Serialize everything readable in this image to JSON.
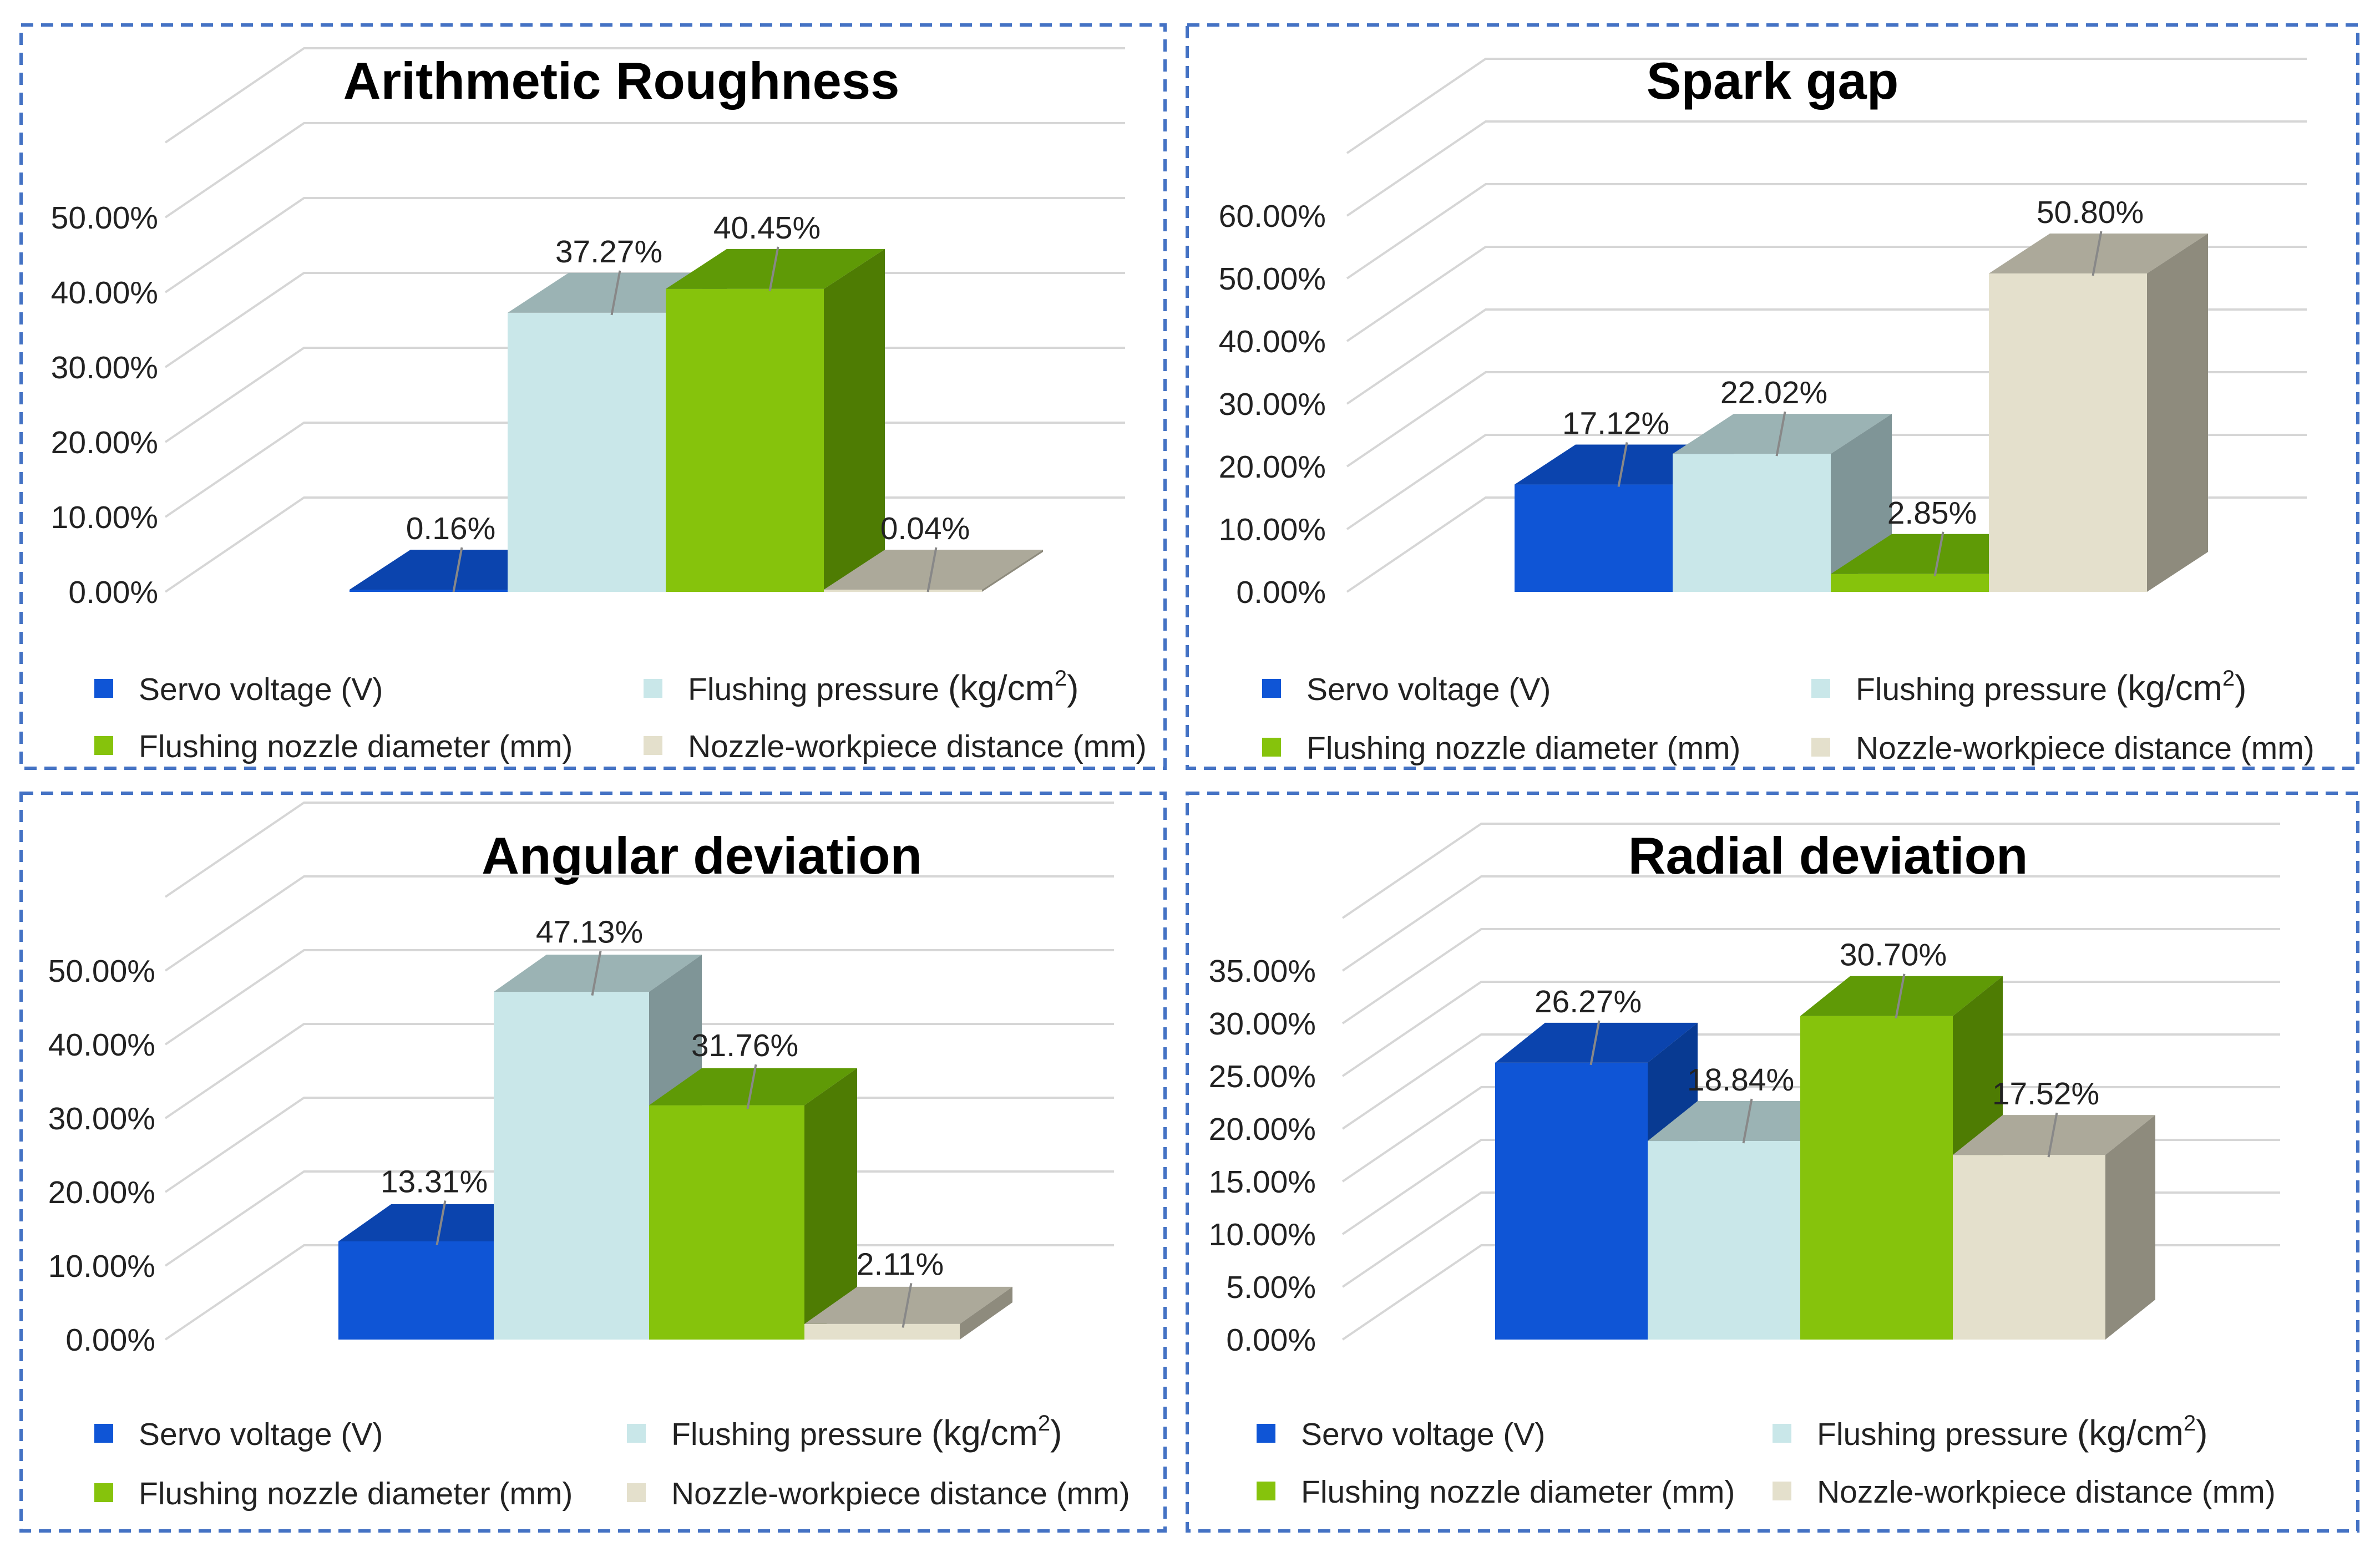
{
  "colors": {
    "panel_border": "#4472C4",
    "series": [
      {
        "front": "#0F55D6",
        "top": "#0B44AE",
        "side": "#083A92"
      },
      {
        "front": "#C9E7E9",
        "top": "#9BB3B4",
        "side": "#7F9597"
      },
      {
        "front": "#86C30C",
        "top": "#5F9A06",
        "side": "#4E7C03"
      },
      {
        "front": "#E4E0CC",
        "top": "#ACA99A",
        "side": "#8E8B7D"
      }
    ]
  },
  "legend": {
    "servo": "Servo voltage (V)",
    "flushing_pressure": "Flushing pressure",
    "flushing_pressure_unit": "(kg/cm",
    "flushing_pressure_sup": "2",
    "flushing_pressure_close": ")",
    "nozzle_diameter": "Flushing nozzle diameter (mm)",
    "nozzle_distance": "Nozzle-workpiece distance (mm)"
  },
  "chart_data": [
    {
      "type": "bar",
      "title": "Arithmetic Roughness",
      "categories": [
        "Servo voltage (V)",
        "Flushing pressure (kg/cm2)",
        "Flushing nozzle diameter (mm)",
        "Nozzle-workpiece distance (mm)"
      ],
      "values": [
        0.16,
        37.27,
        40.45,
        0.04
      ],
      "value_labels": [
        "0.16%",
        "37.27%",
        "40.45%",
        "0.04%"
      ],
      "yticks": [
        "0.00%",
        "10.00%",
        "20.00%",
        "30.00%",
        "40.00%",
        "50.00%"
      ],
      "ylim": [
        0,
        60
      ],
      "xlabel": "",
      "ylabel": ""
    },
    {
      "type": "bar",
      "title": "Spark gap",
      "categories": [
        "Servo voltage (V)",
        "Flushing pressure (kg/cm2)",
        "Flushing nozzle diameter (mm)",
        "Nozzle-workpiece distance (mm)"
      ],
      "values": [
        17.12,
        22.02,
        2.85,
        50.8
      ],
      "value_labels": [
        "17.12%",
        "22.02%",
        "2.85%",
        "50.80%"
      ],
      "yticks": [
        "0.00%",
        "10.00%",
        "20.00%",
        "30.00%",
        "40.00%",
        "50.00%",
        "60.00%"
      ],
      "ylim": [
        0,
        70
      ],
      "xlabel": "",
      "ylabel": ""
    },
    {
      "type": "bar",
      "title": "Angular deviation",
      "categories": [
        "Servo voltage (V)",
        "Flushing pressure (kg/cm2)",
        "Flushing nozzle diameter (mm)",
        "Nozzle-workpiece distance (mm)"
      ],
      "values": [
        13.31,
        47.13,
        31.76,
        2.11
      ],
      "value_labels": [
        "13.31%",
        "47.13%",
        "31.76%",
        "2.11%"
      ],
      "yticks": [
        "0.00%",
        "10.00%",
        "20.00%",
        "30.00%",
        "40.00%",
        "50.00%"
      ],
      "ylim": [
        0,
        60
      ],
      "xlabel": "",
      "ylabel": ""
    },
    {
      "type": "bar",
      "title": "Radial deviation",
      "categories": [
        "Servo voltage (V)",
        "Flushing pressure (kg/cm2)",
        "Flushing nozzle diameter (mm)",
        "Nozzle-workpiece distance (mm)"
      ],
      "values": [
        26.27,
        18.84,
        30.7,
        17.52
      ],
      "value_labels": [
        "26.27%",
        "18.84%",
        "30.70%",
        "17.52%"
      ],
      "yticks": [
        "0.00%",
        "5.00%",
        "10.00%",
        "15.00%",
        "20.00%",
        "25.00%",
        "30.00%",
        "35.00%"
      ],
      "ylim": [
        0,
        40
      ],
      "xlabel": "",
      "ylabel": ""
    }
  ]
}
